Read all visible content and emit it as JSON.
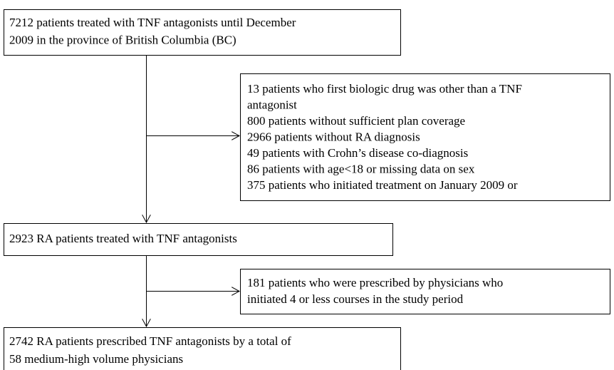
{
  "nodes": [
    {
      "lines": [
        "7212 patients treated with TNF antagonists until December",
        "2009 in the province of British Columbia (BC)"
      ]
    },
    {
      "lines": [
        "13 patients who first biologic drug was other than a TNF",
        "antagonist",
        "800 patients without sufficient plan coverage",
        "2966 patients without RA diagnosis",
        "49 patients with Crohn’s disease co-diagnosis",
        "86 patients with age<18 or missing data on sex",
        "375 patients who initiated treatment on January 2009 or"
      ]
    },
    {
      "lines": [
        "2923 RA patients treated with TNF antagonists"
      ]
    },
    {
      "lines": [
        "181 patients who were prescribed by physicians who",
        "initiated 4 or less courses in the study period"
      ]
    },
    {
      "lines": [
        "2742 RA patients prescribed TNF antagonists by a total of",
        "58 medium-high volume physicians"
      ]
    }
  ]
}
